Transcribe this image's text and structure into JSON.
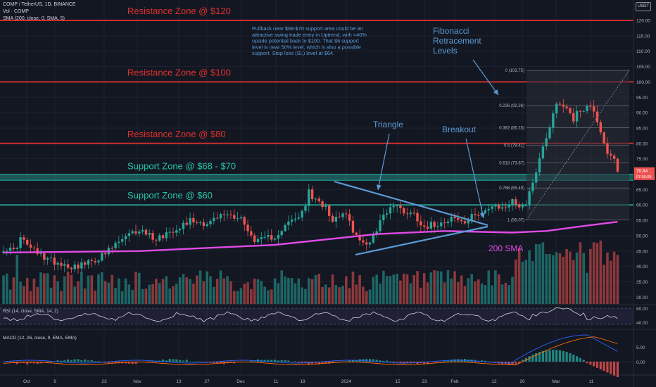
{
  "header": {
    "symbol_line": "COMP / TetherUS, 1D, BINANCE",
    "vol_line": "Vol · COMP",
    "sma_line": "SMA (200, close, 0, SMA, 5)",
    "currency": "USDT"
  },
  "annotation_text": [
    "Pullback near $68-$70 support area could be an",
    "attractive swing trade entry in Uptrend, with +40%",
    "upside potential back to $100. That $6 support",
    "level is near 50% level, which is also a possible",
    "support. Stop loss (SL) level at $64."
  ],
  "labels": {
    "fib_title": [
      "Fibonacci",
      "Retracement",
      "Levels"
    ],
    "triangle": "Triangle",
    "breakout": "Breakout",
    "sma200": "200 SMA"
  },
  "zones": [
    {
      "label": "Resistance Zone @ $120",
      "price": 120,
      "color": "#e0312e"
    },
    {
      "label": "Resistance Zone @ $100",
      "price": 100,
      "color": "#e0312e"
    },
    {
      "label": "Resistance Zone @ $80",
      "price": 80,
      "color": "#e0312e"
    },
    {
      "label": "Support Zone @ $68 - $70",
      "price_low": 68,
      "price_high": 70,
      "color": "#26a69a"
    },
    {
      "label": "Support Zone @ $60",
      "price": 60,
      "color": "#26a69a"
    }
  ],
  "fibonacci": {
    "levels": [
      {
        "label": "0 (103.75)",
        "price": 103.75
      },
      {
        "label": "0.236 (92.26)",
        "price": 92.26
      },
      {
        "label": "0.382 (85.15)",
        "price": 85.15
      },
      {
        "label": "0.5 (79.41)",
        "price": 79.41
      },
      {
        "label": "0.618 (73.67)",
        "price": 73.67
      },
      {
        "label": "0.786 (65.49)",
        "price": 65.49
      },
      {
        "label": "1 (55.07)",
        "price": 55.07
      }
    ]
  },
  "price_axis": {
    "ticks": [
      "120.00",
      "115.00",
      "110.00",
      "105.00",
      "100.00",
      "95.00",
      "90.00",
      "85.00",
      "80.00",
      "75.00",
      "70.00",
      "65.00",
      "60.00",
      "55.00",
      "50.00",
      "45.00",
      "40.00",
      "35.00",
      "30.00"
    ],
    "current_price_label": "70.84",
    "countdown_label": "07:50:08"
  },
  "rsi": {
    "label": "RSI (14, close, SMA, 14, 2)",
    "ticks": [
      "80.00",
      "40.00"
    ]
  },
  "macd": {
    "label": "MACD (12, 26, close, 9, EMA, EMA)",
    "ticks": [
      "5.00",
      "0.00"
    ]
  },
  "time_axis": {
    "labels": [
      "Oct",
      "9",
      "23",
      "Nov",
      "13",
      "27",
      "Dec",
      "11",
      "18",
      "2024",
      "15",
      "23",
      "Feb",
      "12",
      "20",
      "Mar",
      "11"
    ]
  },
  "chart_data": {
    "type": "candlestick",
    "title": "COMP / TetherUS, 1D, BINANCE",
    "ylim": [
      27,
      123
    ],
    "grid": true,
    "series": [
      {
        "name": "COMP / TetherUS",
        "type": "candlestick",
        "anchors_close": [
          [
            0,
            46
          ],
          [
            3,
            45
          ],
          [
            5,
            49
          ],
          [
            7,
            47
          ],
          [
            10,
            44
          ],
          [
            14,
            42
          ],
          [
            20,
            40
          ],
          [
            25,
            41
          ],
          [
            30,
            44
          ],
          [
            34,
            48
          ],
          [
            40,
            52
          ],
          [
            45,
            49
          ],
          [
            50,
            52
          ],
          [
            55,
            55
          ],
          [
            60,
            54
          ],
          [
            65,
            57
          ],
          [
            70,
            56
          ],
          [
            72,
            51
          ],
          [
            75,
            48
          ],
          [
            80,
            50
          ],
          [
            84,
            54
          ],
          [
            88,
            57
          ],
          [
            90,
            64
          ],
          [
            92,
            61
          ],
          [
            95,
            60
          ],
          [
            97,
            55
          ],
          [
            100,
            58
          ],
          [
            103,
            52
          ],
          [
            105,
            48
          ],
          [
            107,
            47
          ],
          [
            110,
            52
          ],
          [
            112,
            57
          ],
          [
            115,
            60
          ],
          [
            118,
            58
          ],
          [
            121,
            57
          ],
          [
            124,
            53
          ],
          [
            128,
            54
          ],
          [
            132,
            56
          ],
          [
            136,
            54
          ],
          [
            139,
            57
          ],
          [
            141,
            58
          ],
          [
            144,
            59
          ],
          [
            147,
            59
          ],
          [
            150,
            61
          ],
          [
            152,
            60
          ],
          [
            154,
            60
          ],
          [
            156,
            68
          ],
          [
            158,
            75
          ],
          [
            161,
            86
          ],
          [
            163,
            93
          ],
          [
            166,
            92
          ],
          [
            168,
            88
          ],
          [
            170,
            91
          ],
          [
            172,
            92
          ],
          [
            174,
            91
          ],
          [
            176,
            84
          ],
          [
            178,
            77
          ],
          [
            180,
            74
          ],
          [
            181,
            70.84
          ]
        ]
      },
      {
        "name": "SMA (200, close, 0, SMA, 5)",
        "type": "line",
        "color": "#e14be6",
        "anchors": [
          [
            0,
            44.5
          ],
          [
            40,
            45
          ],
          [
            80,
            47
          ],
          [
            110,
            50.5
          ],
          [
            130,
            51.5
          ],
          [
            150,
            51
          ],
          [
            160,
            51.5
          ],
          [
            170,
            53
          ],
          [
            181,
            54.5
          ]
        ]
      },
      {
        "name": "Vol",
        "type": "bar"
      },
      {
        "name": "RSI (14, close, SMA, 14, 2)",
        "type": "line",
        "ylim": [
          20,
          100
        ]
      },
      {
        "name": "MACD (12, 26, close, 9, EMA, EMA)",
        "type": "histogram+lines",
        "ylim": [
          -4,
          12
        ]
      }
    ]
  }
}
